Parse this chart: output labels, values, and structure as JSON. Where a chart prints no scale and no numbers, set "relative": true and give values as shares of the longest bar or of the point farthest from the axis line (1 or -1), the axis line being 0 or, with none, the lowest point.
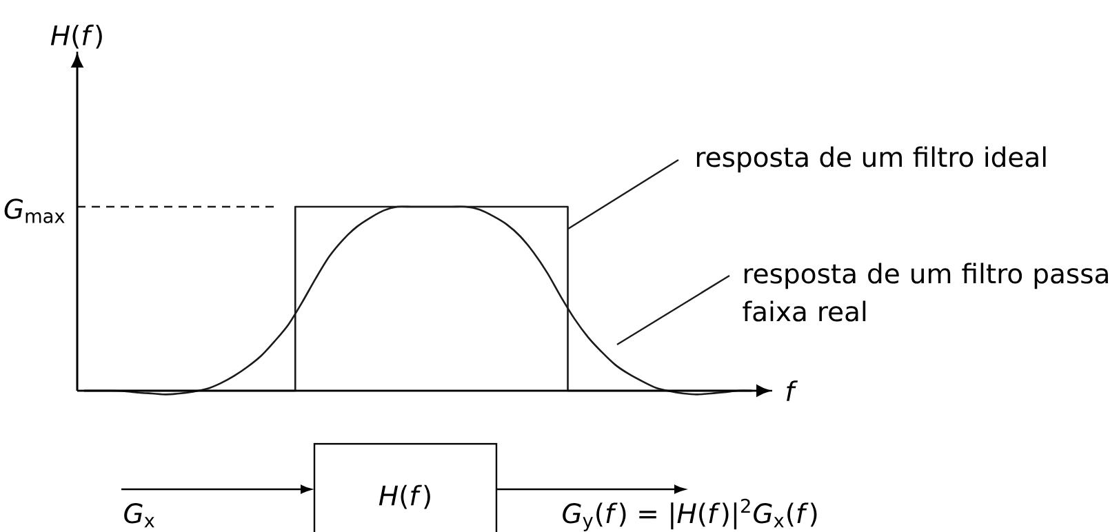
{
  "chart_data": {
    "type": "line",
    "relative": true,
    "xlabel": "f",
    "categories": [
      null,
      null,
      null,
      null,
      null,
      null,
      null,
      null,
      null,
      null,
      null,
      null,
      null,
      null,
      null,
      null,
      null,
      null,
      null,
      null,
      null,
      null,
      null,
      null,
      null,
      null,
      null,
      null,
      null,
      null,
      null,
      null,
      null,
      null,
      null,
      null,
      null,
      null,
      null,
      null,
      null,
      null,
      null,
      null,
      null,
      null,
      null,
      null,
      null,
      null
    ],
    "series": [
      {
        "name": "resposta de um filtro ideal",
        "type": "step",
        "color": "#1a1a1a",
        "values": [
          0,
          0,
          0,
          0,
          0,
          0,
          0,
          0,
          0,
          0,
          0,
          0,
          0,
          0,
          0,
          0,
          1,
          1,
          1,
          1,
          1,
          1,
          1,
          1,
          1,
          1,
          1,
          1,
          1,
          1,
          1,
          1,
          1,
          1,
          1,
          1,
          0,
          0,
          0,
          0,
          0,
          0,
          0,
          0,
          0,
          0,
          0,
          0,
          0,
          0
        ]
      },
      {
        "name": "resposta de um filtro passa faixa real",
        "color": "#1a1a1a",
        "values": [
          0,
          0,
          0,
          -0.003,
          -0.01,
          -0.015,
          -0.02,
          -0.015,
          -0.005,
          0.01,
          0.04,
          0.08,
          0.13,
          0.19,
          0.27,
          0.36,
          0.48,
          0.61,
          0.73,
          0.82,
          0.89,
          0.94,
          0.98,
          1,
          1,
          1,
          1,
          1,
          1,
          0.985,
          0.95,
          0.905,
          0.84,
          0.75,
          0.64,
          0.51,
          0.39,
          0.29,
          0.21,
          0.14,
          0.09,
          0.05,
          0.015,
          -0.003,
          -0.015,
          -0.02,
          -0.015,
          -0.008,
          0,
          0
        ]
      }
    ],
    "ref_lines": [
      {
        "axis": "y",
        "value": 1,
        "label": "*G*$_{max}$",
        "line_style": "dashed",
        "color": "#1a1a1a"
      }
    ],
    "annotations": [
      "*H*(*f*)",
      "*H*(*f*)",
      "*G*$_{x}$",
      "*G*$_{y}$(*f*) = |*H*(*f*)|$^{2}$*G*$_{x}$(*f*)"
    ]
  }
}
